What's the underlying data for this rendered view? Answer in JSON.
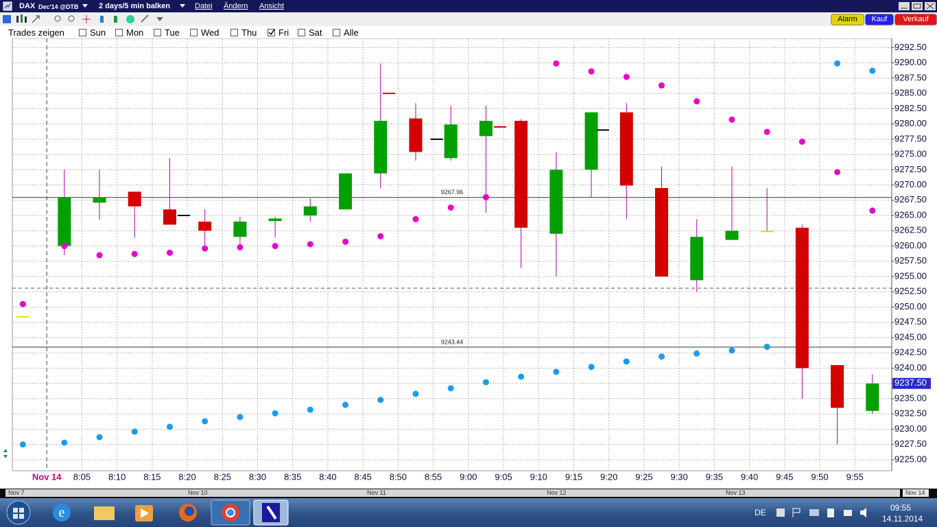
{
  "window": {
    "symbol": "DAX",
    "contract": "Dec'14 @DTB",
    "period": "2 days/5 min balken",
    "menu": [
      "Datei",
      "Ändern",
      "Ansicht"
    ]
  },
  "toolbar": {
    "buttons": [
      "Alarm",
      "Kauf",
      "Verkauf"
    ]
  },
  "trade_filter": {
    "label": "Trades zeigen",
    "days": [
      {
        "label": "Sun",
        "checked": false
      },
      {
        "label": "Mon",
        "checked": false
      },
      {
        "label": "Tue",
        "checked": false
      },
      {
        "label": "Wed",
        "checked": false
      },
      {
        "label": "Thu",
        "checked": false
      },
      {
        "label": "Fri",
        "checked": true
      },
      {
        "label": "Sat",
        "checked": false
      },
      {
        "label": "Alle",
        "checked": false
      }
    ]
  },
  "chart_data": {
    "type": "candlestick",
    "categories": [
      "Nov 14",
      "8:05",
      "8:10",
      "8:15",
      "8:20",
      "8:25",
      "8:30",
      "8:35",
      "8:40",
      "8:45",
      "8:50",
      "8:55",
      "9:00",
      "9:05",
      "9:10",
      "9:15",
      "9:20",
      "9:25",
      "9:30",
      "9:35",
      "9:40",
      "9:45",
      "9:50",
      "9:55"
    ],
    "open": [
      9260.0,
      9267.1,
      9268.9,
      9266.0,
      9264.0,
      9261.5,
      9264.1,
      9265.0,
      9266.0,
      9271.9,
      9280.9,
      9274.4,
      9278.0,
      9280.5,
      9262.0,
      9272.5,
      9281.9,
      9269.5,
      9254.4,
      9261.0,
      9262.5,
      9263.0,
      9240.5,
      9233.0
    ],
    "high": [
      9272.5,
      9272.5,
      9268.9,
      9274.4,
      9266.0,
      9264.8,
      9264.8,
      9267.8,
      9271.9,
      9289.9,
      9283.4,
      9283.0,
      9283.0,
      9280.8,
      9275.4,
      9281.9,
      9283.4,
      9273.0,
      9264.4,
      9273.0,
      9269.5,
      9263.5,
      9240.5,
      9239.0
    ],
    "low": [
      9258.5,
      9264.3,
      9261.4,
      9263.5,
      9259.6,
      9260.0,
      9261.4,
      9264.0,
      9266.0,
      9269.5,
      9274.0,
      9274.0,
      9265.4,
      9256.4,
      9255.0,
      9268.0,
      9264.4,
      9255.0,
      9252.5,
      9261.0,
      9262.4,
      9235.0,
      9227.5,
      9232.5
    ],
    "close": [
      9268.0,
      9268.0,
      9266.5,
      9263.5,
      9262.5,
      9264.0,
      9264.5,
      9266.5,
      9271.9,
      9280.5,
      9275.4,
      9279.9,
      9280.5,
      9263.0,
      9272.5,
      9281.9,
      9269.9,
      9255.0,
      9261.5,
      9262.5,
      9262.5,
      9240.0,
      9233.5,
      9237.5
    ],
    "up_color": "#00a000",
    "down_color": "#d40000",
    "flat_color": "#e8d800",
    "wick_color": "#b000b0",
    "overlays": [
      {
        "color": "#e800c8",
        "x": [
          -0.68,
          0.5,
          1.5,
          2.5,
          3.5,
          4.5,
          5.5,
          6.5,
          7.5,
          8.5,
          9.5,
          10.5,
          11.5,
          12.5,
          13.5,
          14.5,
          15.5,
          16.5,
          17.5,
          18.5,
          19.5,
          20.5,
          21.5,
          22.5,
          23.5
        ],
        "values": [
          9250.5,
          9260.0,
          9258.5,
          9258.7,
          9258.9,
          9259.6,
          9259.8,
          9260.0,
          9260.3,
          9260.7,
          9261.6,
          9264.4,
          9266.3,
          9268.0,
          null,
          9289.9,
          9288.6,
          9287.7,
          9286.3,
          9283.7,
          9280.7,
          9278.7,
          9277.1,
          9272.1,
          9265.8
        ]
      },
      {
        "color": "#1a9bef",
        "x": [
          -0.68,
          0.5,
          1.5,
          2.5,
          3.5,
          4.5,
          5.5,
          6.5,
          7.5,
          8.5,
          9.5,
          10.5,
          11.5,
          12.5,
          13.5,
          14.5,
          15.5,
          16.5,
          17.5,
          18.5,
          19.5,
          20.5,
          21.5,
          22.5,
          23.5
        ],
        "values": [
          9227.5,
          9227.8,
          9228.7,
          9229.6,
          9230.4,
          9231.3,
          9232.0,
          9232.6,
          9233.2,
          9234.0,
          9234.8,
          9235.8,
          9236.7,
          9237.7,
          9238.6,
          9239.4,
          9240.2,
          9241.1,
          9241.9,
          9242.4,
          9242.9,
          9243.5,
          null,
          9289.9,
          9288.7
        ]
      }
    ],
    "markers": [
      {
        "x": -0.68,
        "value": 9248.4,
        "color": "#e8d800"
      },
      {
        "x": 3.9,
        "value": 9265.0,
        "color": "#000000"
      },
      {
        "x": 9.74,
        "value": 9285.0,
        "color": "#d00000"
      },
      {
        "x": 11.1,
        "value": 9277.5,
        "color": "#000000"
      },
      {
        "x": 12.9,
        "value": 9279.5,
        "color": "#d00000"
      },
      {
        "x": 15.83,
        "value": 9279.0,
        "color": "#000000"
      }
    ],
    "hlines": [
      9267.96,
      9243.44
    ],
    "dashed_hline": 9253.1,
    "last_price": {
      "value": 9237.5,
      "label": "9237.50"
    },
    "xlim": [
      -0.98,
      24.05
    ],
    "ylim": [
      9223.2,
      9294.0
    ],
    "grid": true,
    "yticks": [
      {
        "value": 9225,
        "label": "9225.00"
      },
      {
        "value": 9227.5,
        "label": "9227.50"
      },
      {
        "value": 9230,
        "label": "9230.00"
      },
      {
        "value": 9232.5,
        "label": "9232.50"
      },
      {
        "value": 9235,
        "label": "9235.00"
      },
      {
        "value": 9237.5,
        "label": "9237.50"
      },
      {
        "value": 9240,
        "label": "9240.00"
      },
      {
        "value": 9242.5,
        "label": "9242.50"
      },
      {
        "value": 9245,
        "label": "9245.00"
      },
      {
        "value": 9247.5,
        "label": "9247.50"
      },
      {
        "value": 9250,
        "label": "9250.00"
      },
      {
        "value": 9252.5,
        "label": "9252.50"
      },
      {
        "value": 9255,
        "label": "9255.00"
      },
      {
        "value": 9257.5,
        "label": "9257.50"
      },
      {
        "value": 9260,
        "label": "9260.00"
      },
      {
        "value": 9262.5,
        "label": "9262.50"
      },
      {
        "value": 9265,
        "label": "9265.00"
      },
      {
        "value": 9267.5,
        "label": "9267.50"
      },
      {
        "value": 9270,
        "label": "9270.00"
      },
      {
        "value": 9272.5,
        "label": "9272.50"
      },
      {
        "value": 9275,
        "label": "9275.00"
      },
      {
        "value": 9277.5,
        "label": "9277.50"
      },
      {
        "value": 9280,
        "label": "9280.00"
      },
      {
        "value": 9282.5,
        "label": "9282.50"
      },
      {
        "value": 9285,
        "label": "9285.00"
      },
      {
        "value": 9287.5,
        "label": "9287.50"
      },
      {
        "value": 9290,
        "label": "9290.00"
      },
      {
        "value": 9292.5,
        "label": "9292.50"
      }
    ]
  },
  "timeline": {
    "labels": [
      "Nov 7",
      "Nov 10",
      "Nov 11",
      "Nov 12",
      "Nov 13",
      "Nov 14"
    ]
  },
  "taskbar": {
    "language": "DE",
    "time": "09:55",
    "date": "14.11.2014"
  }
}
